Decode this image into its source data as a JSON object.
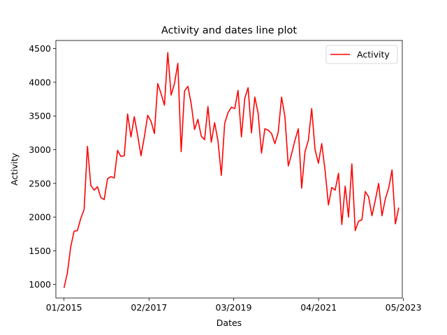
{
  "chart_data": {
    "type": "line",
    "title": "Activity and dates line plot",
    "xlabel": "Dates",
    "ylabel": "Activity",
    "xlim": [
      "2014-10-20",
      "2023-04-21"
    ],
    "ylim": [
      800,
      4620
    ],
    "xticks": [
      {
        "label": "01/2015",
        "date": "2015-01-01"
      },
      {
        "label": "02/2017",
        "date": "2017-02-01"
      },
      {
        "label": "03/2019",
        "date": "2019-03-01"
      },
      {
        "label": "04/2021",
        "date": "2021-04-01"
      },
      {
        "label": "05/2023",
        "date": "2023-05-01"
      }
    ],
    "yticks": [
      1000,
      1500,
      2000,
      2500,
      3000,
      3500,
      4000,
      4500
    ],
    "grid": false,
    "legend_position": "top-right",
    "series": [
      {
        "name": "Activity",
        "color": "#ff0000",
        "x": [
          "2015-01-01",
          "2015-01-31",
          "2015-03-02",
          "2015-04-01",
          "2015-05-01",
          "2015-05-31",
          "2015-06-30",
          "2015-07-30",
          "2015-08-29",
          "2015-09-28",
          "2015-10-28",
          "2015-11-27",
          "2015-12-27",
          "2016-01-26",
          "2016-02-25",
          "2016-03-26",
          "2016-04-25",
          "2016-05-25",
          "2016-06-24",
          "2016-07-24",
          "2016-08-23",
          "2016-09-22",
          "2016-10-22",
          "2016-11-21",
          "2016-12-21",
          "2017-01-20",
          "2017-02-19",
          "2017-03-21",
          "2017-04-20",
          "2017-05-20",
          "2017-06-19",
          "2017-07-19",
          "2017-08-18",
          "2017-09-17",
          "2017-10-17",
          "2017-11-16",
          "2017-12-16",
          "2018-01-15",
          "2018-02-14",
          "2018-03-16",
          "2018-04-15",
          "2018-05-15",
          "2018-06-14",
          "2018-07-14",
          "2018-08-13",
          "2018-09-12",
          "2018-10-12",
          "2018-11-11",
          "2018-12-11",
          "2019-01-10",
          "2019-02-09",
          "2019-03-11",
          "2019-04-10",
          "2019-05-10",
          "2019-06-09",
          "2019-07-09",
          "2019-08-08",
          "2019-09-07",
          "2019-10-07",
          "2019-11-06",
          "2019-12-06",
          "2020-01-05",
          "2020-02-04",
          "2020-03-05",
          "2020-04-04",
          "2020-05-04",
          "2020-06-03",
          "2020-07-03",
          "2020-08-02",
          "2020-09-01",
          "2020-10-01",
          "2020-10-31",
          "2020-11-30",
          "2020-12-30",
          "2021-01-29",
          "2021-02-28",
          "2021-03-30",
          "2021-04-29",
          "2021-05-29",
          "2021-06-28",
          "2021-07-28",
          "2021-08-27",
          "2021-09-26",
          "2021-10-26",
          "2021-11-25",
          "2021-12-25",
          "2022-01-24",
          "2022-02-23",
          "2022-03-25",
          "2022-04-24",
          "2022-05-24",
          "2022-06-23",
          "2022-07-23",
          "2022-08-22",
          "2022-09-21",
          "2022-10-21",
          "2022-11-20",
          "2022-12-20",
          "2023-01-19",
          "2023-02-18",
          "2023-03-20"
        ],
        "values": [
          950,
          1170,
          1560,
          1790,
          1800,
          1980,
          2110,
          3050,
          2470,
          2400,
          2450,
          2290,
          2260,
          2570,
          2600,
          2580,
          2990,
          2900,
          2910,
          3530,
          3190,
          3490,
          3210,
          2910,
          3190,
          3510,
          3420,
          3240,
          3980,
          3830,
          3660,
          4440,
          3810,
          3980,
          4280,
          2970,
          3870,
          3940,
          3680,
          3300,
          3450,
          3200,
          3150,
          3640,
          3110,
          3400,
          3130,
          2620,
          3390,
          3550,
          3630,
          3610,
          3880,
          3190,
          3760,
          3920,
          3250,
          3780,
          3540,
          2950,
          3310,
          3290,
          3240,
          3090,
          3260,
          3780,
          3490,
          2760,
          2940,
          3140,
          3310,
          2430,
          2970,
          3140,
          3610,
          3000,
          2800,
          3090,
          2690,
          2180,
          2440,
          2400,
          2650,
          1890,
          2460,
          2000,
          2790,
          1800,
          1940,
          1960,
          2380,
          2300,
          2020,
          2250,
          2500,
          2020,
          2270,
          2430,
          2700,
          1900,
          2140
        ]
      }
    ]
  }
}
